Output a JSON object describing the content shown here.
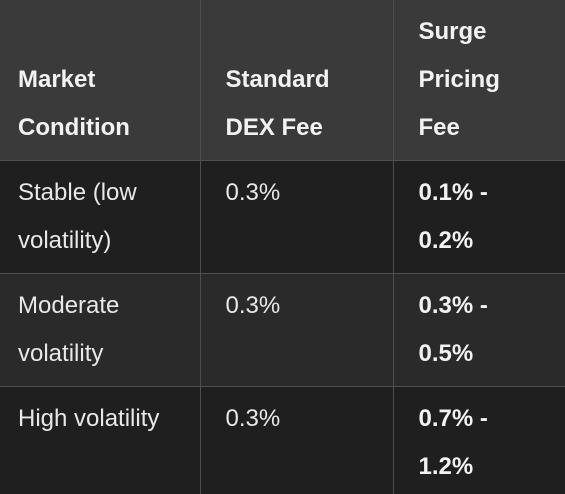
{
  "table": {
    "header": [
      "Market Condition",
      "Standard DEX Fee",
      "Surge Pricing Fee"
    ],
    "rows": [
      [
        "Stable (low volatility)",
        "0.3%",
        "0.1% - 0.2%"
      ],
      [
        "Moderate volatility",
        "0.3%",
        "0.3% - 0.5%"
      ],
      [
        "High volatility",
        "0.3%",
        "0.7% - 1.2%"
      ]
    ]
  }
}
